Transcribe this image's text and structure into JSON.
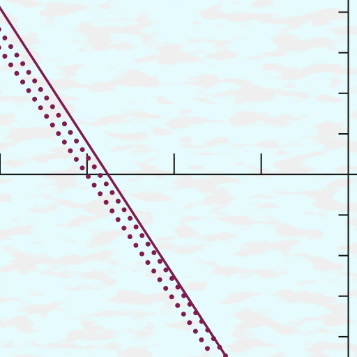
{
  "chart_data": {
    "type": "line",
    "title": "",
    "xlabel": "",
    "ylabel": "",
    "xlim": [
      -4,
      0.1
    ],
    "ylim": [
      -4.5,
      4.3
    ],
    "x_ticks": [
      -4,
      -3,
      -2,
      -1,
      0
    ],
    "y_ticks": [
      -4,
      -3,
      -2,
      -1,
      0,
      1,
      2,
      3,
      4
    ],
    "grid": false,
    "legend": "none",
    "tick_labels_shown": false,
    "series": [
      {
        "style": "solid",
        "color": "#7b1d4e",
        "x": [
          -4.15,
          -1.4
        ],
        "y": [
          4.6,
          -4.5
        ]
      },
      {
        "style": "dotted",
        "color": "#7b1d4e",
        "x": [
          -4.15,
          -1.4
        ],
        "y": [
          4.0,
          -4.5
        ]
      },
      {
        "style": "dotted",
        "color": "#7b1d4e",
        "x": [
          -4.15,
          -1.55
        ],
        "y": [
          3.55,
          -4.5
        ]
      }
    ]
  },
  "colors": {
    "background": "#e6fbfd",
    "speckle": "#dcdcdc",
    "axis": "#111111"
  }
}
